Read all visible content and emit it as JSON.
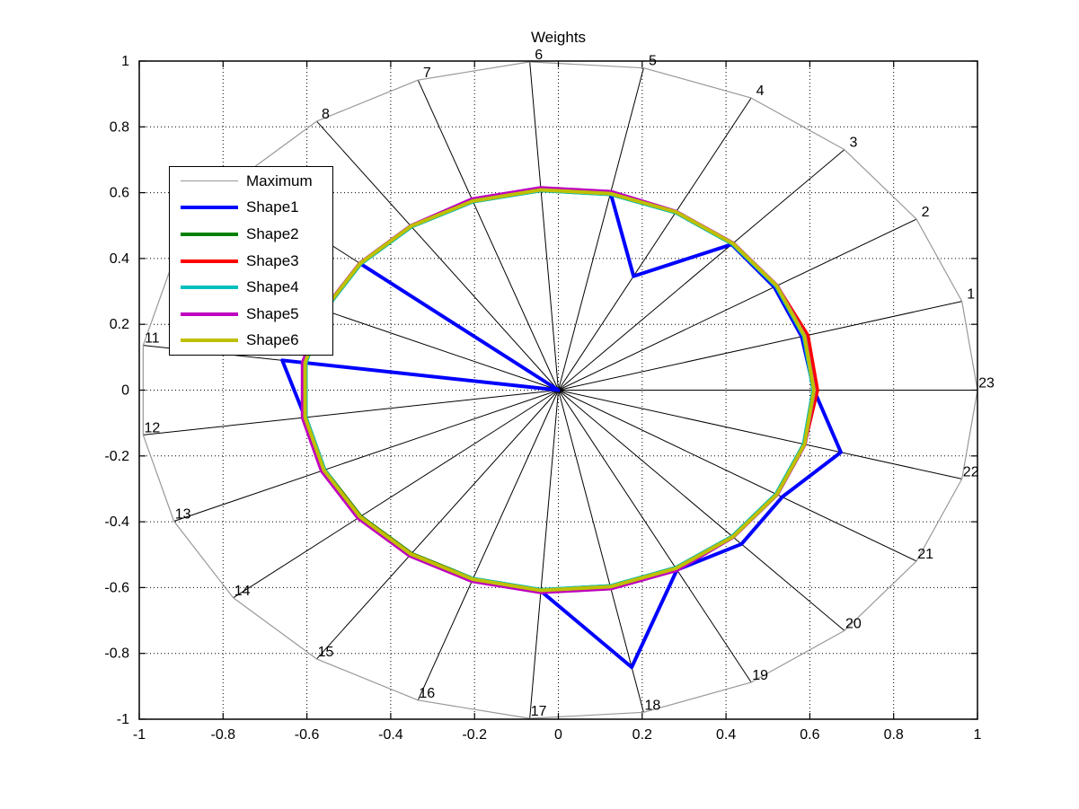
{
  "title": "Weights",
  "chart_data": {
    "type": "radar",
    "title": "Weights",
    "grid": "dotted",
    "legend_position": "upper-left",
    "xlabel": "",
    "ylabel": "",
    "xlim": [
      -1,
      1
    ],
    "ylim": [
      -1,
      1
    ],
    "x_tick_labels": [
      "-1",
      "-0.8",
      "-0.6",
      "-0.4",
      "-0.2",
      "0",
      "0.2",
      "0.4",
      "0.6",
      "0.8",
      "1"
    ],
    "y_tick_labels": [
      "-1",
      "-0.8",
      "-0.6",
      "-0.4",
      "-0.2",
      "0",
      "0.2",
      "0.4",
      "0.6",
      "0.8",
      "1"
    ],
    "x_ticks": [
      -1,
      -0.8,
      -0.6,
      -0.4,
      -0.2,
      0,
      0.2,
      0.4,
      0.6,
      0.8,
      1
    ],
    "y_ticks": [
      -1,
      -0.8,
      -0.6,
      -0.4,
      -0.2,
      0,
      0.2,
      0.4,
      0.6,
      0.8,
      1
    ],
    "axis_labels": [
      "1",
      "2",
      "3",
      "4",
      "5",
      "6",
      "7",
      "8",
      "9",
      "10",
      "11",
      "12",
      "13",
      "14",
      "15",
      "16",
      "17",
      "18",
      "19",
      "20",
      "21",
      "22",
      "23"
    ],
    "radial_max": 1,
    "series": [
      {
        "name": "Maximum",
        "color": "#999999",
        "width": 1.2,
        "values": [
          1,
          1,
          1,
          1,
          1,
          1,
          1,
          1,
          1,
          1,
          1,
          1,
          1,
          1,
          1,
          1,
          1,
          1,
          1,
          1,
          1,
          1,
          1
        ]
      },
      {
        "name": "Shape1",
        "color": "#0000ff",
        "width": 4,
        "values": [
          0.603,
          0.603,
          0.606,
          0.39,
          0.612,
          0.612,
          0.61,
          0.61,
          0.61,
          0.0,
          0.665,
          0.61,
          0.61,
          0.61,
          0.61,
          0.61,
          0.612,
          0.86,
          0.615,
          0.64,
          0.625,
          0.7,
          0.61
        ]
      },
      {
        "name": "Shape2",
        "color": "#008000",
        "width": 4,
        "values": [
          0.608,
          0.608,
          0.608,
          0.608,
          0.608,
          0.608,
          0.608,
          0.608,
          0.608,
          0.608,
          0.608,
          0.608,
          0.608,
          0.608,
          0.608,
          0.608,
          0.608,
          0.608,
          0.608,
          0.608,
          0.608,
          0.608,
          0.608
        ]
      },
      {
        "name": "Shape3",
        "color": "#ff0000",
        "width": 4,
        "values": [
          0.618,
          0.61,
          0.61,
          0.61,
          0.61,
          0.61,
          0.61,
          0.61,
          0.61,
          0.61,
          0.61,
          0.61,
          0.61,
          0.61,
          0.61,
          0.61,
          0.61,
          0.61,
          0.61,
          0.61,
          0.61,
          0.61,
          0.618
        ]
      },
      {
        "name": "Shape4",
        "color": "#00bfbf",
        "width": 4,
        "values": [
          0.608,
          0.608,
          0.608,
          0.608,
          0.608,
          0.608,
          0.608,
          0.608,
          0.608,
          0.608,
          0.608,
          0.608,
          0.608,
          0.613,
          0.613,
          0.608,
          0.608,
          0.608,
          0.608,
          0.608,
          0.608,
          0.608,
          0.608
        ]
      },
      {
        "name": "Shape5",
        "color": "#bf00bf",
        "width": 4,
        "values": [
          0.611,
          0.611,
          0.611,
          0.611,
          0.616,
          0.616,
          0.616,
          0.611,
          0.611,
          0.611,
          0.616,
          0.616,
          0.616,
          0.616,
          0.616,
          0.616,
          0.616,
          0.616,
          0.616,
          0.611,
          0.611,
          0.611,
          0.611
        ]
      },
      {
        "name": "Shape6",
        "color": "#bfbf00",
        "width": 4,
        "values": [
          0.61,
          0.61,
          0.61,
          0.61,
          0.61,
          0.61,
          0.61,
          0.61,
          0.61,
          0.61,
          0.61,
          0.61,
          0.61,
          0.61,
          0.61,
          0.61,
          0.61,
          0.61,
          0.61,
          0.61,
          0.61,
          0.61,
          0.61
        ]
      }
    ]
  }
}
